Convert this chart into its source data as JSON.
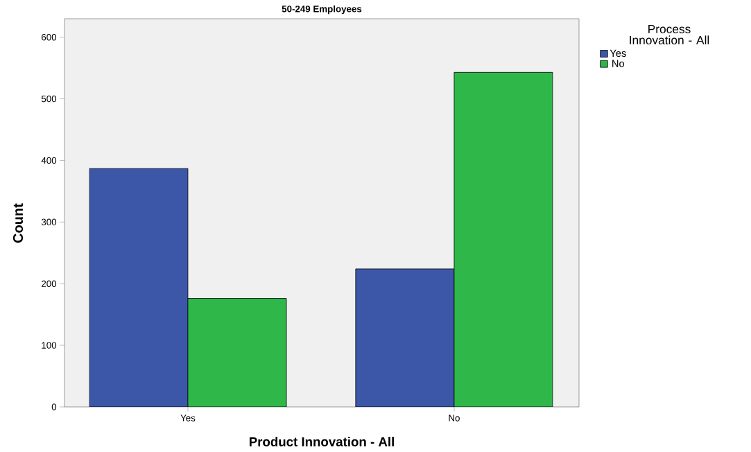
{
  "chart_data": {
    "type": "bar",
    "title": "50-249 Employees",
    "xlabel": "Product Innovation - All",
    "ylabel": "Count",
    "legend_title": "Process Innovation - All",
    "categories": [
      "Yes",
      "No"
    ],
    "series": [
      {
        "name": "Yes",
        "color": "#3d57a8",
        "values": [
          387,
          224
        ]
      },
      {
        "name": "No",
        "color": "#2fb74a",
        "values": [
          176,
          543
        ]
      }
    ],
    "ylim": [
      0,
      630
    ],
    "yticks": [
      0,
      100,
      200,
      300,
      400,
      500,
      600
    ],
    "grid": false,
    "legend": "top right"
  }
}
